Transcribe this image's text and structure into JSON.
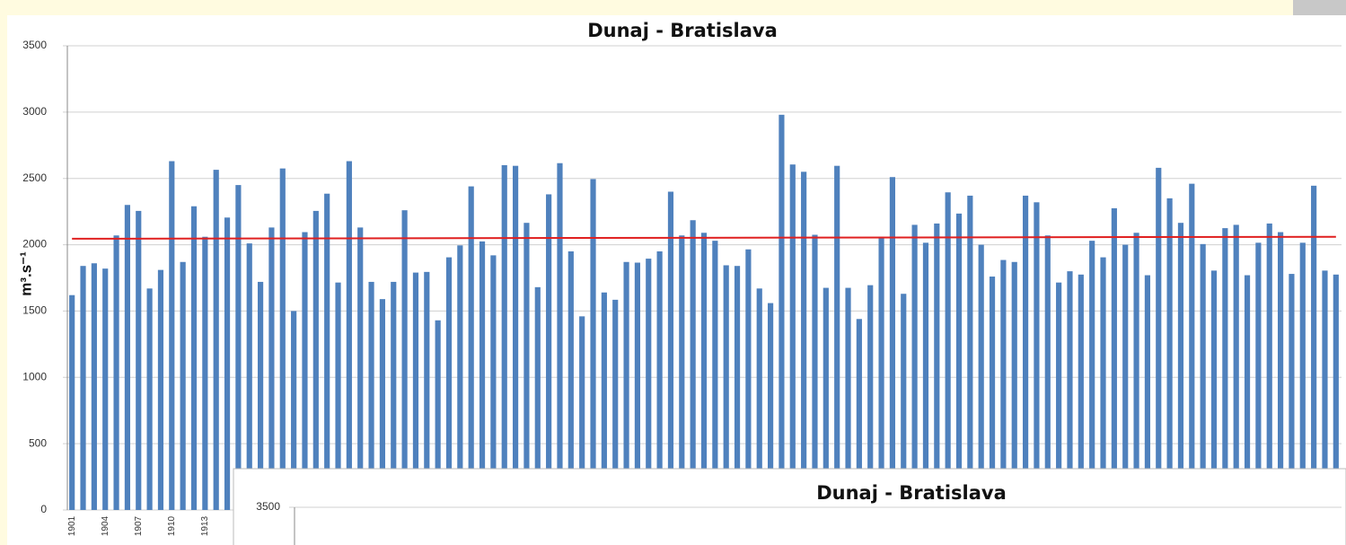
{
  "chart_data": [
    {
      "type": "bar",
      "title": "Dunaj - Bratislava",
      "y_label": "m³.s⁻¹",
      "color": "#4f81bd",
      "categories": [
        "1901",
        null,
        null,
        "1904",
        null,
        null,
        "1907",
        null,
        null,
        "1910",
        null,
        null,
        "1913",
        null,
        null,
        null,
        null,
        null,
        null,
        null,
        null,
        null,
        null,
        null,
        null,
        null,
        null,
        null,
        null,
        null,
        null,
        null,
        null,
        null,
        null,
        null,
        null,
        null,
        null,
        null,
        null,
        null,
        null,
        null,
        null,
        null,
        null,
        null,
        null,
        null,
        null,
        null,
        null,
        null,
        null,
        null,
        null,
        null,
        null,
        null,
        null,
        null,
        null,
        null,
        null,
        null,
        null,
        null,
        null,
        null,
        null,
        null,
        null,
        null,
        null,
        null,
        null,
        null,
        null,
        null,
        null,
        null,
        null,
        null,
        null,
        null,
        null,
        null,
        null,
        null,
        null,
        null,
        null,
        null,
        null,
        null,
        null,
        null,
        null,
        null,
        null,
        null,
        null,
        null,
        null,
        null,
        null,
        null,
        null,
        null,
        null,
        null,
        null,
        null,
        null
      ],
      "values": [
        1620,
        1840,
        1860,
        1820,
        2070,
        2300,
        2255,
        1670,
        1810,
        2630,
        1870,
        2290,
        2060,
        2565,
        2205,
        2450,
        2010,
        1720,
        2130,
        2575,
        1500,
        2095,
        2255,
        2385,
        1715,
        2630,
        2130,
        1720,
        1590,
        1720,
        2260,
        1790,
        1795,
        1430,
        1905,
        1995,
        2440,
        2025,
        1920,
        2600,
        2595,
        2165,
        1680,
        2380,
        2615,
        1950,
        1460,
        2495,
        1640,
        1585,
        1870,
        1865,
        1895,
        1950,
        2400,
        2070,
        2185,
        2090,
        2030,
        1845,
        1840,
        1965,
        1670,
        1560,
        2980,
        2605,
        2550,
        2075,
        1675,
        2595,
        1675,
        1440,
        1695,
        2060,
        2510,
        1630,
        2150,
        2015,
        2160,
        2395,
        2235,
        2370,
        2000,
        1760,
        1885,
        1870,
        2370,
        2320,
        2070,
        1715,
        1800,
        1775,
        2030,
        1905,
        2275,
        2000,
        2090,
        1770,
        2580,
        2350,
        2165,
        2460,
        2005,
        1805,
        2125,
        2150,
        1770,
        2015,
        2160,
        2095,
        1780,
        2015,
        2445,
        1805,
        1775
      ],
      "trend_line": {
        "color": "#e02020",
        "values": [
          2045,
          2060
        ]
      },
      "ylim": [
        0,
        3500
      ],
      "yticks": [
        0,
        500,
        1000,
        1500,
        2000,
        2500,
        3000,
        3500
      ],
      "grid": true
    },
    {
      "type": "bar",
      "title": "Dunaj - Bratislava",
      "ylim": [
        0,
        3500
      ],
      "yticks": [
        3500
      ],
      "grid": true
    }
  ]
}
